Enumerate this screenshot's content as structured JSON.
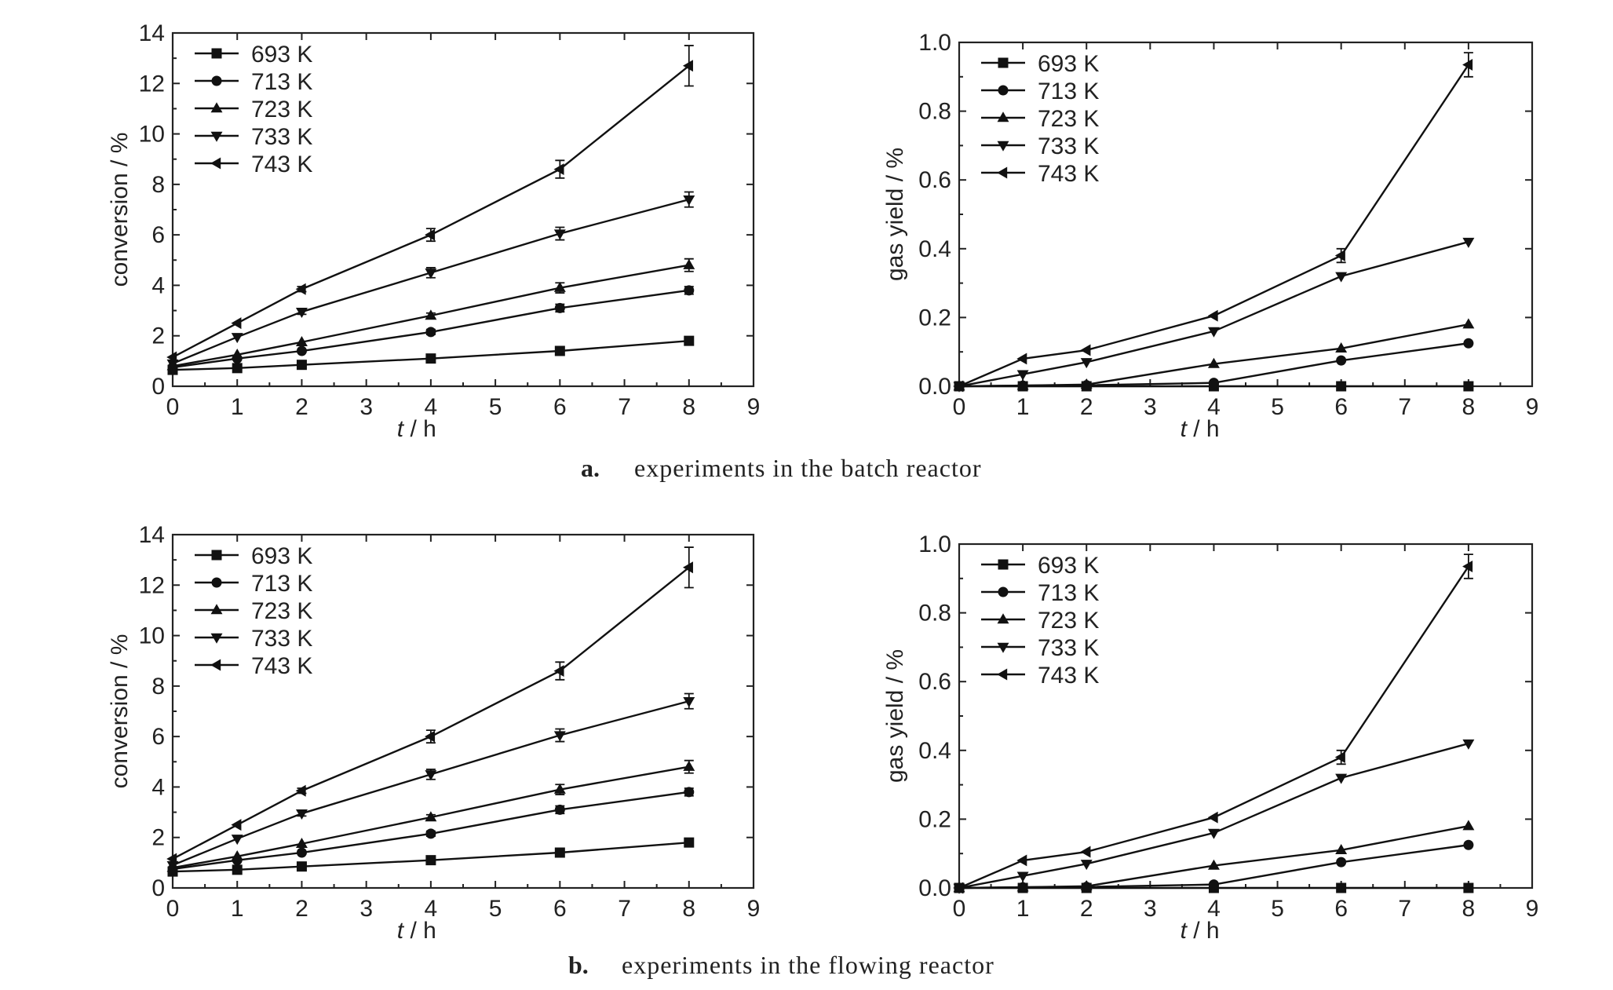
{
  "captions": [
    {
      "letter": "a.",
      "text": "experiments in the batch reactor"
    },
    {
      "letter": "b.",
      "text": "experiments in the flowing reactor"
    }
  ],
  "chart_data": [
    {
      "type": "line",
      "xlabel_italic": "t",
      "xlabel_rest": " / h",
      "ylabel": "conversion / %",
      "xlim": [
        0,
        9
      ],
      "ylim": [
        0,
        14
      ],
      "xticks": [
        0,
        1,
        2,
        3,
        4,
        5,
        6,
        7,
        8,
        9
      ],
      "yticks": [
        0,
        2,
        4,
        6,
        8,
        10,
        12,
        14
      ],
      "legend_position": "top-left",
      "x": [
        0,
        1,
        2,
        4,
        6,
        8
      ],
      "series": [
        {
          "name": "693 K",
          "marker": "square",
          "values": [
            0.65,
            0.72,
            0.85,
            1.1,
            1.4,
            1.8
          ],
          "errors": [
            0,
            0,
            0,
            0,
            0,
            0.1
          ]
        },
        {
          "name": "713 K",
          "marker": "circle",
          "values": [
            0.75,
            1.1,
            1.4,
            2.15,
            3.1,
            3.8
          ],
          "errors": [
            0,
            0,
            0,
            0.1,
            0.15,
            0.15
          ]
        },
        {
          "name": "723 K",
          "marker": "triangle-up",
          "values": [
            0.8,
            1.25,
            1.75,
            2.8,
            3.9,
            4.8
          ],
          "errors": [
            0,
            0,
            0,
            0.1,
            0.2,
            0.25
          ]
        },
        {
          "name": "733 K",
          "marker": "triangle-down",
          "values": [
            0.9,
            1.95,
            2.95,
            4.5,
            6.05,
            7.4
          ],
          "errors": [
            0,
            0,
            0.1,
            0.2,
            0.25,
            0.3
          ]
        },
        {
          "name": "743 K",
          "marker": "triangle-left",
          "values": [
            1.15,
            2.5,
            3.85,
            6.0,
            8.6,
            12.7
          ],
          "errors": [
            0,
            0,
            0.1,
            0.25,
            0.35,
            0.8
          ]
        }
      ]
    },
    {
      "type": "line",
      "xlabel_italic": "t",
      "xlabel_rest": " / h",
      "ylabel": "gas yield / %",
      "xlim": [
        0,
        9
      ],
      "ylim": [
        0,
        1.0
      ],
      "xticks": [
        0,
        1,
        2,
        3,
        4,
        5,
        6,
        7,
        8,
        9
      ],
      "yticks": [
        0.0,
        0.2,
        0.4,
        0.6,
        0.8,
        1.0
      ],
      "legend_position": "top-left",
      "x": [
        0,
        1,
        2,
        4,
        6,
        8
      ],
      "series": [
        {
          "name": "693 K",
          "marker": "square",
          "values": [
            0.0,
            0.0,
            0.0,
            0.0,
            0.0,
            0.0
          ],
          "errors": [
            0,
            0,
            0,
            0,
            0,
            0
          ]
        },
        {
          "name": "713 K",
          "marker": "circle",
          "values": [
            0.0,
            0.002,
            0.003,
            0.01,
            0.075,
            0.125
          ],
          "errors": [
            0,
            0,
            0,
            0,
            0,
            0
          ]
        },
        {
          "name": "723 K",
          "marker": "triangle-up",
          "values": [
            0.0,
            0.002,
            0.005,
            0.065,
            0.11,
            0.18
          ],
          "errors": [
            0,
            0,
            0,
            0,
            0,
            0
          ]
        },
        {
          "name": "733 K",
          "marker": "triangle-down",
          "values": [
            0.0,
            0.035,
            0.07,
            0.16,
            0.32,
            0.42
          ],
          "errors": [
            0,
            0,
            0,
            0,
            0,
            0
          ]
        },
        {
          "name": "743 K",
          "marker": "triangle-left",
          "values": [
            0.0,
            0.08,
            0.105,
            0.205,
            0.38,
            0.935
          ],
          "errors": [
            0,
            0,
            0,
            0,
            0.02,
            0.035
          ]
        }
      ]
    },
    {
      "type": "line",
      "xlabel_italic": "t",
      "xlabel_rest": " / h",
      "ylabel": "conversion / %",
      "xlim": [
        0,
        9
      ],
      "ylim": [
        0,
        14
      ],
      "xticks": [
        0,
        1,
        2,
        3,
        4,
        5,
        6,
        7,
        8,
        9
      ],
      "yticks": [
        0,
        2,
        4,
        6,
        8,
        10,
        12,
        14
      ],
      "legend_position": "top-left",
      "x": [
        0,
        1,
        2,
        4,
        6,
        8
      ],
      "series": [
        {
          "name": "693 K",
          "marker": "square",
          "values": [
            0.65,
            0.72,
            0.85,
            1.1,
            1.4,
            1.8
          ],
          "errors": [
            0,
            0,
            0,
            0,
            0,
            0.1
          ]
        },
        {
          "name": "713 K",
          "marker": "circle",
          "values": [
            0.75,
            1.1,
            1.4,
            2.15,
            3.1,
            3.8
          ],
          "errors": [
            0,
            0,
            0,
            0.1,
            0.15,
            0.15
          ]
        },
        {
          "name": "723 K",
          "marker": "triangle-up",
          "values": [
            0.8,
            1.25,
            1.75,
            2.8,
            3.9,
            4.8
          ],
          "errors": [
            0,
            0,
            0,
            0.1,
            0.2,
            0.25
          ]
        },
        {
          "name": "733 K",
          "marker": "triangle-down",
          "values": [
            0.9,
            1.95,
            2.95,
            4.5,
            6.05,
            7.4
          ],
          "errors": [
            0,
            0,
            0.1,
            0.2,
            0.25,
            0.3
          ]
        },
        {
          "name": "743 K",
          "marker": "triangle-left",
          "values": [
            1.15,
            2.5,
            3.85,
            6.0,
            8.6,
            12.7
          ],
          "errors": [
            0,
            0,
            0.1,
            0.25,
            0.35,
            0.8
          ]
        }
      ]
    },
    {
      "type": "line",
      "xlabel_italic": "t",
      "xlabel_rest": " / h",
      "ylabel": "gas yield / %",
      "xlim": [
        0,
        9
      ],
      "ylim": [
        0,
        1.0
      ],
      "xticks": [
        0,
        1,
        2,
        3,
        4,
        5,
        6,
        7,
        8,
        9
      ],
      "yticks": [
        0.0,
        0.2,
        0.4,
        0.6,
        0.8,
        1.0
      ],
      "legend_position": "top-left",
      "x": [
        0,
        1,
        2,
        4,
        6,
        8
      ],
      "series": [
        {
          "name": "693 K",
          "marker": "square",
          "values": [
            0.0,
            0.0,
            0.0,
            0.0,
            0.0,
            0.0
          ],
          "errors": [
            0,
            0,
            0,
            0,
            0,
            0
          ]
        },
        {
          "name": "713 K",
          "marker": "circle",
          "values": [
            0.0,
            0.002,
            0.003,
            0.01,
            0.075,
            0.125
          ],
          "errors": [
            0,
            0,
            0,
            0,
            0,
            0
          ]
        },
        {
          "name": "723 K",
          "marker": "triangle-up",
          "values": [
            0.0,
            0.002,
            0.005,
            0.065,
            0.11,
            0.18
          ],
          "errors": [
            0,
            0,
            0,
            0,
            0,
            0
          ]
        },
        {
          "name": "733 K",
          "marker": "triangle-down",
          "values": [
            0.0,
            0.035,
            0.07,
            0.16,
            0.32,
            0.42
          ],
          "errors": [
            0,
            0,
            0,
            0,
            0,
            0
          ]
        },
        {
          "name": "743 K",
          "marker": "triangle-left",
          "values": [
            0.0,
            0.08,
            0.105,
            0.205,
            0.38,
            0.935
          ],
          "errors": [
            0,
            0,
            0,
            0,
            0.02,
            0.035
          ]
        }
      ]
    }
  ]
}
